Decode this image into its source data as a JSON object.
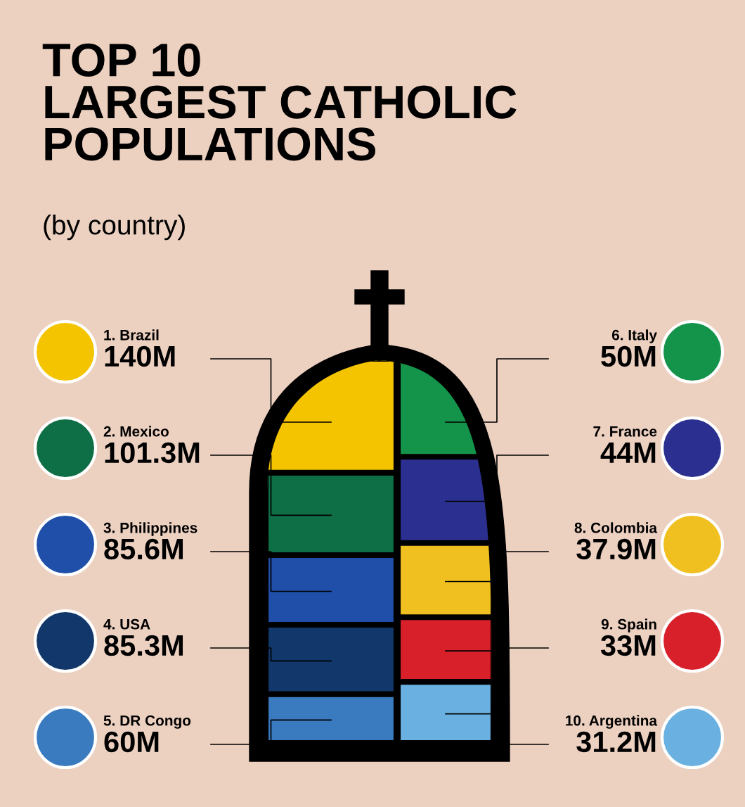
{
  "chart_data": {
    "type": "other",
    "title": "TOP 10\nLARGEST CATHOLIC\nPOPULATIONS",
    "subtitle": "(by country)",
    "categories": [
      "1. Brazil",
      "2. Mexico",
      "3. Philippines",
      "4. USA",
      "5. DR Congo",
      "6. Italy",
      "7. France",
      "8. Colombia",
      "9. Spain",
      "10. Argentina"
    ],
    "values": [
      140,
      101.3,
      85.6,
      85.3,
      60,
      50,
      44,
      37.9,
      33,
      31.2
    ],
    "value_labels": [
      "140M",
      "101.3M",
      "85.6M",
      "85.3M",
      "60M",
      "50M",
      "44M",
      "37.9M",
      "33M",
      "31.2M"
    ],
    "colors": [
      "#f5c400",
      "#0e6e45",
      "#1f4fa8",
      "#12386b",
      "#3a7bc0",
      "#14934a",
      "#2b2f8f",
      "#f0c020",
      "#d8202a",
      "#6ab0e0"
    ]
  }
}
